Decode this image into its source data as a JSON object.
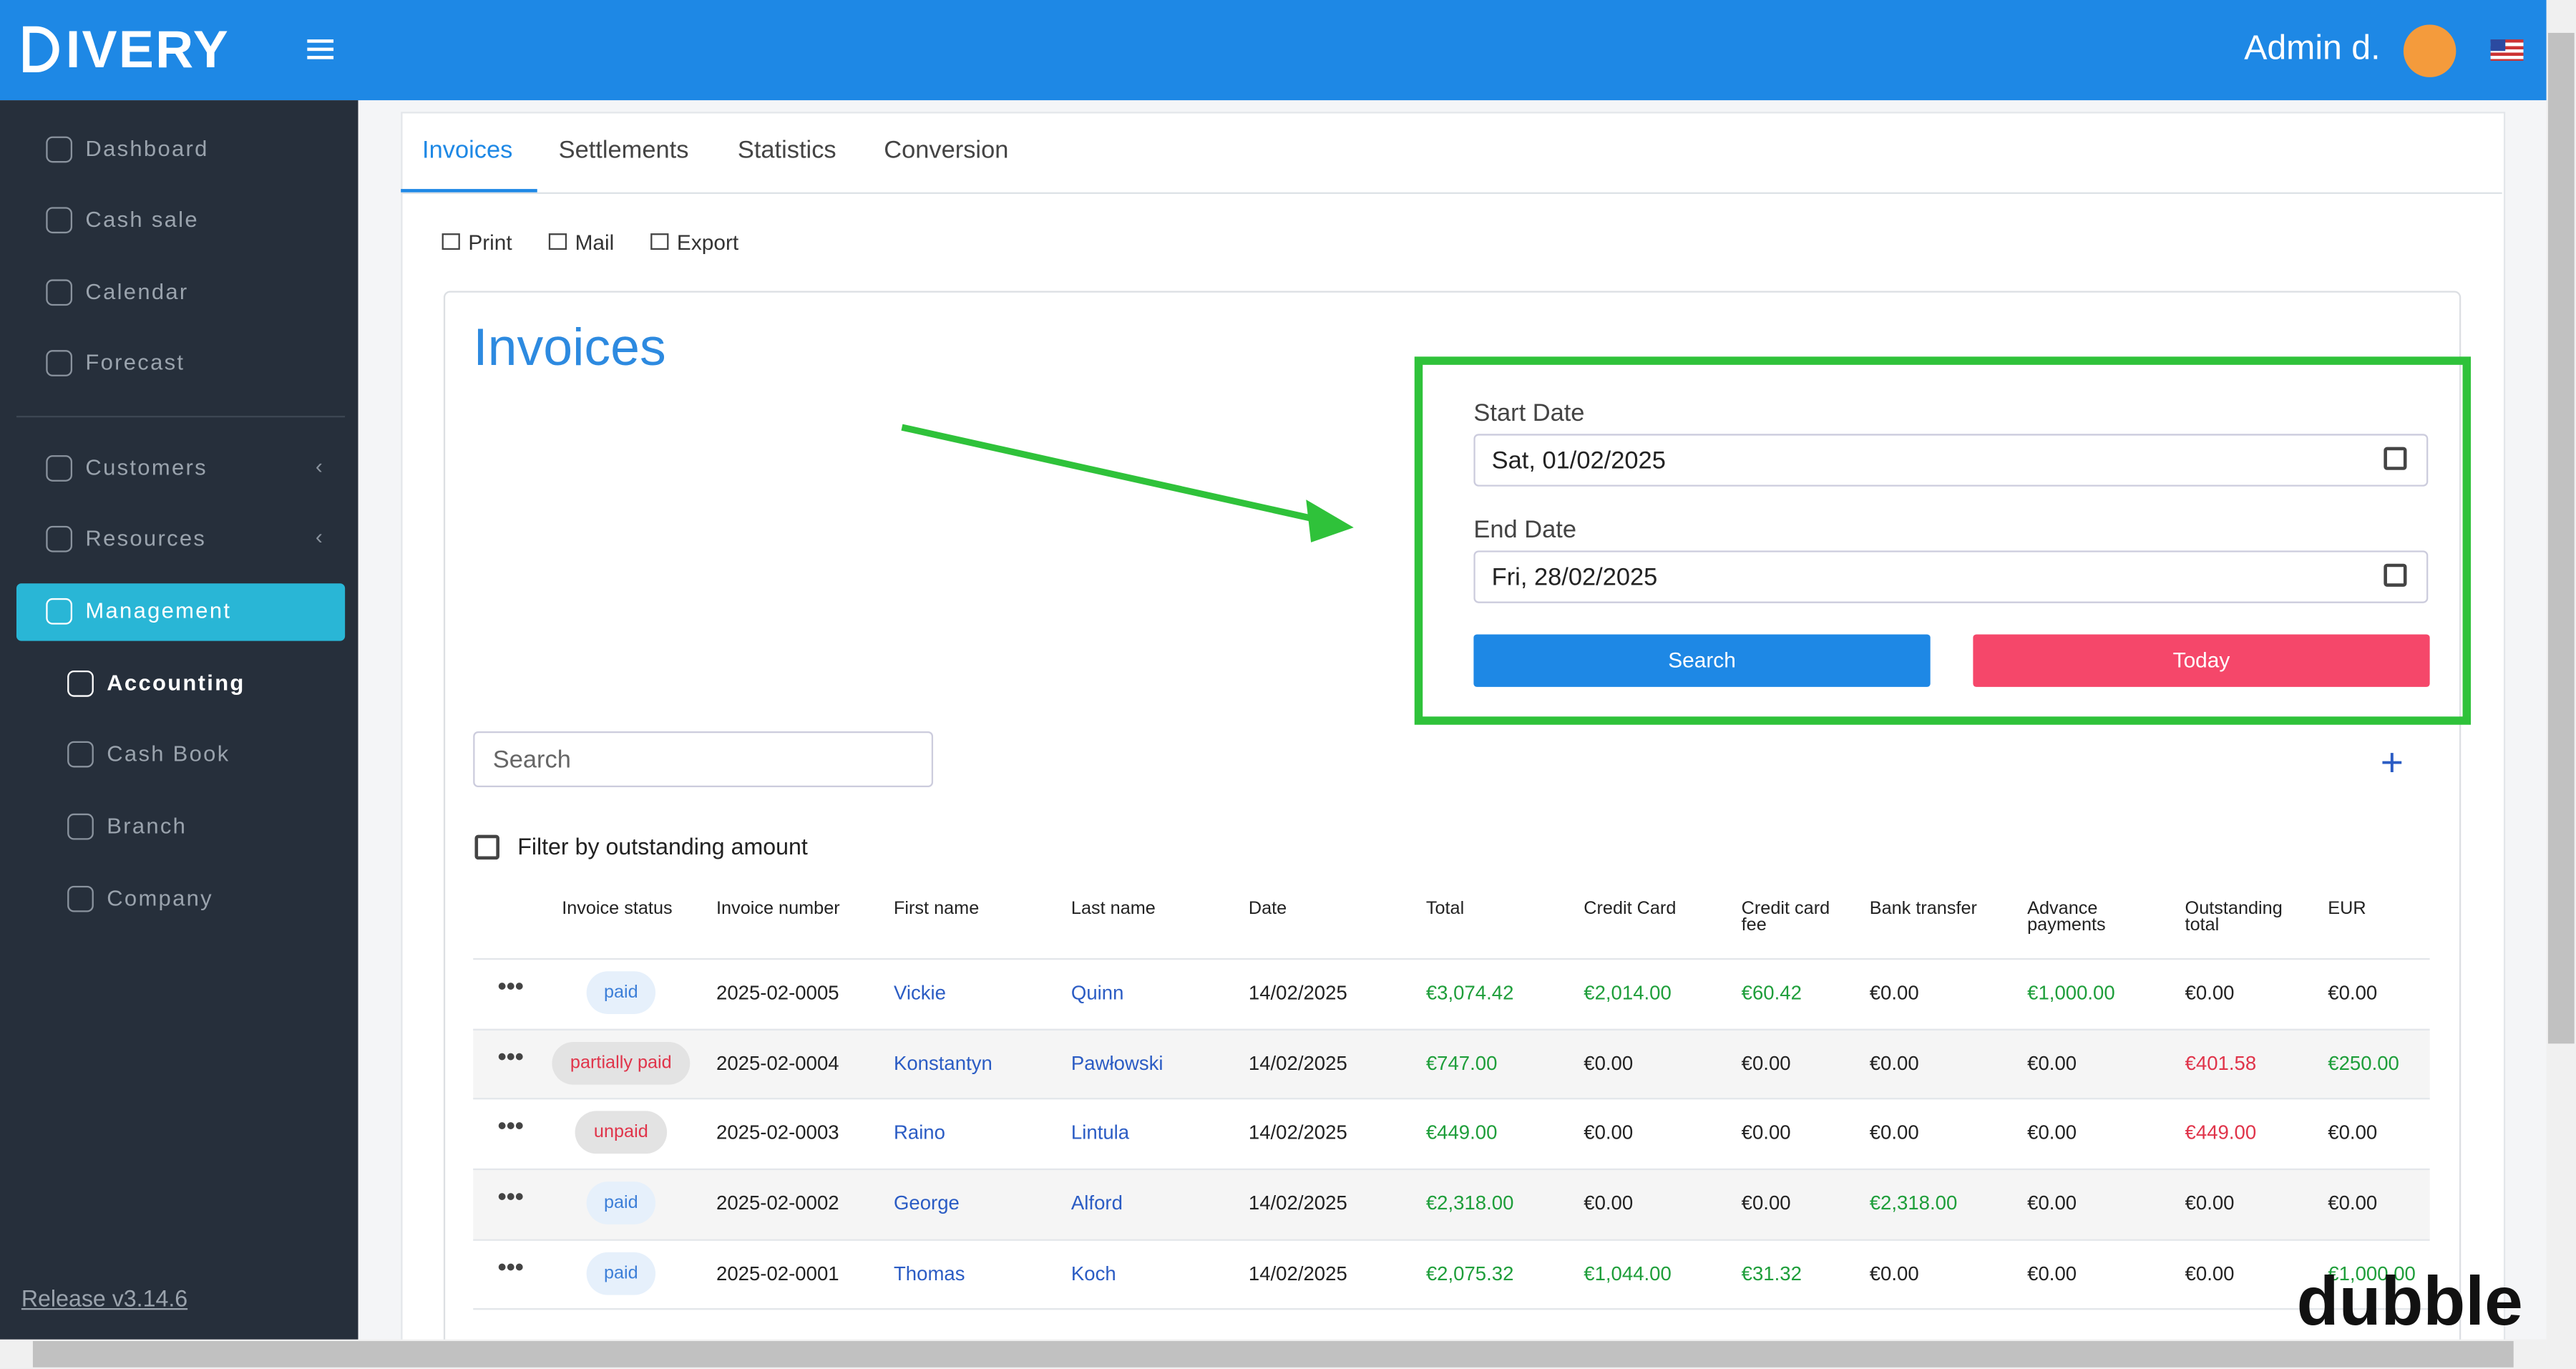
{
  "header": {
    "brand": "IVERY",
    "user": "Admin d."
  },
  "sidebar": {
    "items": [
      "Dashboard",
      "Cash sale",
      "Calendar",
      "Forecast",
      "Customers",
      "Resources",
      "Management",
      "Accounting",
      "Cash Book",
      "Branch",
      "Company"
    ],
    "release": "Release v3.14.6"
  },
  "tabs": [
    "Invoices",
    "Settlements",
    "Statistics",
    "Conversion"
  ],
  "toolbar": [
    "Print",
    "Mail",
    "Export"
  ],
  "title": "Invoices",
  "filters": {
    "start_label": "Start Date",
    "start_value": "Sat, 01/02/2025",
    "end_label": "End Date",
    "end_value": "Fri, 28/02/2025",
    "search_button": "Search",
    "today_button": "Today"
  },
  "search_placeholder": "Search",
  "outstanding_filter": "Filter by outstanding amount",
  "table": {
    "columns": [
      "Invoice status",
      "Invoice number",
      "First name",
      "Last name",
      "Date",
      "Total",
      "Credit Card",
      "Credit card fee",
      "Bank transfer",
      "Advance payments",
      "Outstanding total",
      "EUR"
    ],
    "rows": [
      {
        "cells": [
          "paid",
          "2025-02-0005",
          "Vickie",
          "Quinn",
          "14/02/2025",
          "€3,074.42",
          "€2,014.00",
          "€60.42",
          "€0.00",
          "€1,000.00",
          "€0.00",
          "€0.00"
        ],
        "tones": [
          "blue",
          "black",
          "link",
          "link",
          "black",
          "green",
          "green",
          "green",
          "black",
          "green",
          "black",
          "black"
        ]
      },
      {
        "cells": [
          "partially paid",
          "2025-02-0004",
          "Konstantyn",
          "Pawłowski",
          "14/02/2025",
          "€747.00",
          "€0.00",
          "€0.00",
          "€0.00",
          "€0.00",
          "€401.58",
          "€250.00"
        ],
        "tones": [
          "red",
          "black",
          "link",
          "link",
          "black",
          "green",
          "black",
          "black",
          "black",
          "black",
          "red",
          "green"
        ]
      },
      {
        "cells": [
          "unpaid",
          "2025-02-0003",
          "Raino",
          "Lintula",
          "14/02/2025",
          "€449.00",
          "€0.00",
          "€0.00",
          "€0.00",
          "€0.00",
          "€449.00",
          "€0.00"
        ],
        "tones": [
          "red",
          "black",
          "link",
          "link",
          "black",
          "green",
          "black",
          "black",
          "black",
          "black",
          "red",
          "black"
        ]
      },
      {
        "cells": [
          "paid",
          "2025-02-0002",
          "George",
          "Alford",
          "14/02/2025",
          "€2,318.00",
          "€0.00",
          "€0.00",
          "€2,318.00",
          "€0.00",
          "€0.00",
          "€0.00"
        ],
        "tones": [
          "blue",
          "black",
          "link",
          "link",
          "black",
          "green",
          "black",
          "black",
          "green",
          "black",
          "black",
          "black"
        ]
      },
      {
        "cells": [
          "paid",
          "2025-02-0001",
          "Thomas",
          "Koch",
          "14/02/2025",
          "€2,075.32",
          "€1,044.00",
          "€31.32",
          "€0.00",
          "€0.00",
          "€0.00",
          "€1,000.00"
        ],
        "tones": [
          "blue",
          "black",
          "link",
          "link",
          "black",
          "green",
          "green",
          "green",
          "black",
          "black",
          "black",
          "green"
        ]
      }
    ]
  },
  "watermark": "dubble"
}
